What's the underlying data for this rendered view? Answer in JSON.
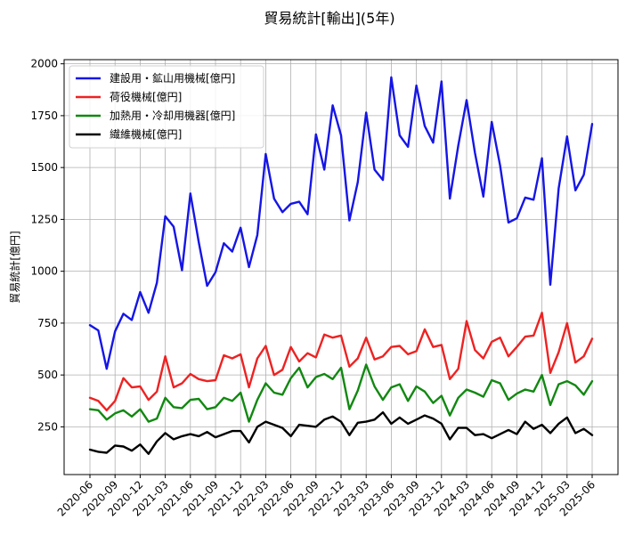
{
  "chart_data": {
    "type": "line",
    "title": "貿易統計[輸出](5年)",
    "xlabel": "",
    "ylabel": "貿易統計[億円]",
    "ylim": [
      20,
      2020
    ],
    "yticks": [
      250,
      500,
      750,
      1000,
      1250,
      1500,
      1750,
      2000
    ],
    "ytick_labels": [
      "250",
      "500",
      "750",
      "1000",
      "1250",
      "1500",
      "1750",
      "2000"
    ],
    "xtick_labels": [
      "2020-06",
      "2020-09",
      "2020-12",
      "2021-03",
      "2021-06",
      "2021-09",
      "2021-12",
      "2022-03",
      "2022-06",
      "2022-09",
      "2022-12",
      "2023-03",
      "2023-06",
      "2023-09",
      "2023-12",
      "2024-03",
      "2024-06",
      "2024-09",
      "2024-12",
      "2025-03",
      "2025-06"
    ],
    "x": [
      "2020-06",
      "2020-07",
      "2020-08",
      "2020-09",
      "2020-10",
      "2020-11",
      "2020-12",
      "2021-01",
      "2021-02",
      "2021-03",
      "2021-04",
      "2021-05",
      "2021-06",
      "2021-07",
      "2021-08",
      "2021-09",
      "2021-10",
      "2021-11",
      "2021-12",
      "2022-01",
      "2022-02",
      "2022-03",
      "2022-04",
      "2022-05",
      "2022-06",
      "2022-07",
      "2022-08",
      "2022-09",
      "2022-10",
      "2022-11",
      "2022-12",
      "2023-01",
      "2023-02",
      "2023-03",
      "2023-04",
      "2023-05",
      "2023-06",
      "2023-07",
      "2023-08",
      "2023-09",
      "2023-10",
      "2023-11",
      "2023-12",
      "2024-01",
      "2024-02",
      "2024-03",
      "2024-04",
      "2024-05",
      "2024-06",
      "2024-07",
      "2024-08",
      "2024-09",
      "2024-10",
      "2024-11",
      "2024-12",
      "2025-01",
      "2025-02",
      "2025-03",
      "2025-04",
      "2025-05",
      "2025-06"
    ],
    "grid": true,
    "legend_position": "top-left",
    "series": [
      {
        "name": "建設用・鉱山用機械[億円]",
        "color": "#1515e6",
        "values": [
          740,
          715,
          530,
          710,
          795,
          765,
          900,
          800,
          945,
          1265,
          1215,
          1005,
          1375,
          1140,
          930,
          995,
          1135,
          1095,
          1210,
          1020,
          1175,
          1565,
          1350,
          1285,
          1325,
          1335,
          1275,
          1660,
          1490,
          1800,
          1655,
          1245,
          1430,
          1765,
          1490,
          1440,
          1935,
          1655,
          1600,
          1895,
          1700,
          1620,
          1915,
          1350,
          1605,
          1825,
          1570,
          1360,
          1720,
          1510,
          1235,
          1255,
          1355,
          1345,
          1545,
          935,
          1400,
          1650,
          1390,
          1465,
          1710
        ]
      },
      {
        "name": "荷役機械[億円]",
        "color": "#ee2222",
        "values": [
          390,
          375,
          330,
          375,
          485,
          440,
          445,
          380,
          420,
          590,
          440,
          460,
          505,
          480,
          470,
          475,
          595,
          580,
          600,
          440,
          580,
          640,
          500,
          525,
          635,
          565,
          605,
          585,
          695,
          680,
          690,
          540,
          580,
          680,
          575,
          590,
          635,
          640,
          600,
          615,
          720,
          635,
          645,
          480,
          530,
          760,
          620,
          580,
          660,
          680,
          590,
          635,
          685,
          690,
          800,
          510,
          610,
          750,
          560,
          590,
          675
        ]
      },
      {
        "name": "加熱用・冷却用機器[億円]",
        "color": "#118811",
        "values": [
          335,
          330,
          285,
          315,
          330,
          300,
          335,
          275,
          290,
          390,
          345,
          340,
          380,
          385,
          335,
          345,
          390,
          375,
          415,
          275,
          380,
          460,
          415,
          405,
          485,
          535,
          440,
          490,
          505,
          480,
          535,
          335,
          425,
          550,
          445,
          380,
          440,
          455,
          375,
          445,
          420,
          365,
          400,
          305,
          390,
          430,
          415,
          395,
          475,
          460,
          380,
          410,
          430,
          420,
          500,
          355,
          455,
          470,
          450,
          405,
          470
        ]
      },
      {
        "name": "繊維機械[億円]",
        "color": "#000000",
        "values": [
          140,
          130,
          125,
          160,
          155,
          135,
          165,
          120,
          180,
          220,
          190,
          205,
          215,
          205,
          225,
          200,
          215,
          230,
          230,
          175,
          250,
          275,
          260,
          245,
          205,
          260,
          255,
          250,
          285,
          300,
          275,
          210,
          270,
          275,
          285,
          320,
          265,
          295,
          265,
          285,
          305,
          290,
          265,
          190,
          245,
          245,
          210,
          215,
          195,
          215,
          235,
          215,
          275,
          240,
          260,
          220,
          265,
          295,
          220,
          240,
          210
        ]
      }
    ]
  }
}
